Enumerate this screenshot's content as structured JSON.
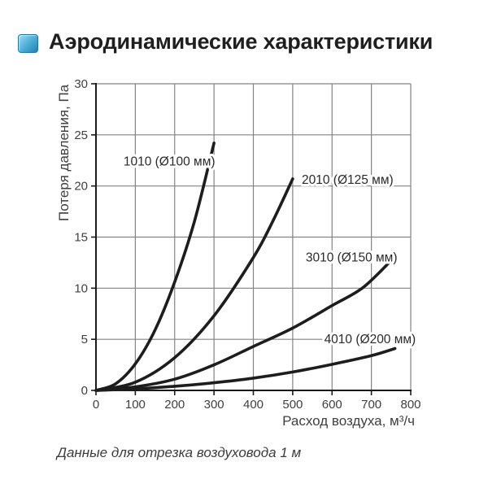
{
  "header": {
    "title": "Аэродинамические характеристики"
  },
  "caption": "Данные для отрезка воздуховода 1 м",
  "chart_data": {
    "type": "line",
    "title": "",
    "xlabel": "Расход воздуха, м³/ч",
    "ylabel": "Потеря давления, Па",
    "xlim": [
      0,
      800
    ],
    "ylim": [
      0,
      30
    ],
    "x_ticks": [
      0,
      100,
      200,
      300,
      400,
      500,
      600,
      700,
      800
    ],
    "y_ticks": [
      0,
      5,
      10,
      15,
      20,
      25,
      30
    ],
    "grid": true,
    "legend_position": "inline-labels",
    "colors": {
      "curve": "#1d1d1d",
      "grid": "#838383",
      "axis": "#1a1a1a",
      "tick_text": "#404040",
      "label_text": "#2a2a2a"
    },
    "series": [
      {
        "name": "1010 (Ø100 мм)",
        "points": [
          [
            0,
            0
          ],
          [
            50,
            0.65
          ],
          [
            100,
            2.6
          ],
          [
            150,
            5.9
          ],
          [
            200,
            10.6
          ],
          [
            250,
            16.5
          ],
          [
            300,
            24.2
          ]
        ],
        "label_pos": [
          70,
          22.0
        ]
      },
      {
        "name": "2010 (Ø125 мм)",
        "points": [
          [
            0,
            0
          ],
          [
            100,
            0.8
          ],
          [
            200,
            3.2
          ],
          [
            300,
            7.3
          ],
          [
            400,
            13.0
          ],
          [
            450,
            16.6
          ],
          [
            500,
            20.7
          ]
        ],
        "label_pos": [
          523,
          20.2
        ]
      },
      {
        "name": "3010 (Ø150 мм)",
        "points": [
          [
            0,
            0
          ],
          [
            100,
            0.35
          ],
          [
            200,
            1.1
          ],
          [
            300,
            2.5
          ],
          [
            400,
            4.3
          ],
          [
            500,
            6.1
          ],
          [
            600,
            8.3
          ],
          [
            680,
            10.1
          ],
          [
            760,
            13.1
          ]
        ],
        "label_pos": [
          533,
          12.6
        ]
      },
      {
        "name": "4010 (Ø200 мм)",
        "points": [
          [
            0,
            0
          ],
          [
            100,
            0.15
          ],
          [
            200,
            0.4
          ],
          [
            300,
            0.75
          ],
          [
            400,
            1.2
          ],
          [
            500,
            1.8
          ],
          [
            600,
            2.55
          ],
          [
            700,
            3.4
          ],
          [
            760,
            4.1
          ]
        ],
        "label_pos": [
          580,
          4.6
        ]
      }
    ]
  }
}
